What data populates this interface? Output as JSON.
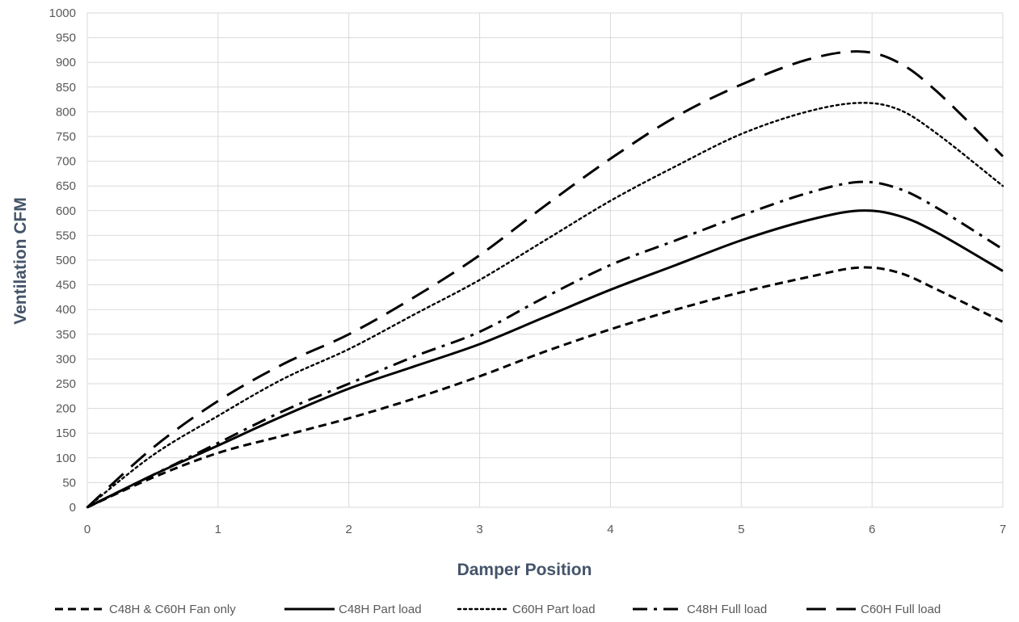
{
  "chart_data": {
    "type": "line",
    "xlabel": "Damper Position",
    "ylabel": "Ventilation CFM",
    "xlim": [
      0,
      7
    ],
    "ylim": [
      0,
      1000
    ],
    "x_ticks": [
      "0",
      "1",
      "2",
      "3",
      "4",
      "5",
      "6",
      "7"
    ],
    "y_ticks": [
      "0",
      "50",
      "100",
      "150",
      "200",
      "250",
      "300",
      "350",
      "400",
      "450",
      "500",
      "550",
      "600",
      "650",
      "700",
      "750",
      "800",
      "850",
      "900",
      "950",
      "1000"
    ],
    "grid": true,
    "legend_position": "bottom",
    "series": [
      {
        "name": "C48H & C60H Fan only",
        "dash": "dashed",
        "x": [
          0,
          0.5,
          1,
          1.5,
          2,
          2.5,
          3,
          3.5,
          4,
          4.5,
          5,
          5.5,
          5.9,
          6.2,
          6.5,
          7
        ],
        "y": [
          0,
          60,
          110,
          145,
          180,
          220,
          265,
          315,
          360,
          400,
          435,
          465,
          485,
          475,
          440,
          375
        ]
      },
      {
        "name": "C48H Part load",
        "dash": "solid",
        "x": [
          0,
          0.5,
          1,
          1.5,
          2,
          2.5,
          3,
          3.5,
          4,
          4.5,
          5,
          5.5,
          5.9,
          6.2,
          6.5,
          7
        ],
        "y": [
          0,
          65,
          125,
          185,
          240,
          285,
          330,
          385,
          440,
          490,
          540,
          580,
          600,
          590,
          555,
          478
        ]
      },
      {
        "name": "C60H Part load",
        "dash": "dotted",
        "x": [
          0,
          0.5,
          1,
          1.5,
          2,
          2.5,
          3,
          3.5,
          4,
          4.5,
          5,
          5.5,
          5.9,
          6.2,
          6.5,
          7
        ],
        "y": [
          0,
          105,
          185,
          260,
          320,
          390,
          460,
          540,
          620,
          690,
          755,
          800,
          818,
          805,
          755,
          650
        ]
      },
      {
        "name": "C48H Full load",
        "dash": "dashdot",
        "x": [
          0,
          0.5,
          1,
          1.5,
          2,
          2.5,
          3,
          3.5,
          4,
          4.5,
          5,
          5.5,
          5.9,
          6.2,
          6.5,
          7
        ],
        "y": [
          0,
          65,
          130,
          195,
          250,
          305,
          355,
          425,
          490,
          540,
          590,
          635,
          658,
          645,
          605,
          522
        ]
      },
      {
        "name": "C60H Full load",
        "dash": "longdash",
        "x": [
          0,
          0.5,
          1,
          1.5,
          2,
          2.5,
          3,
          3.5,
          4,
          4.5,
          5,
          5.5,
          5.9,
          6.2,
          6.5,
          7
        ],
        "y": [
          0,
          120,
          215,
          290,
          350,
          425,
          510,
          610,
          705,
          790,
          855,
          905,
          922,
          900,
          840,
          710
        ]
      }
    ]
  }
}
